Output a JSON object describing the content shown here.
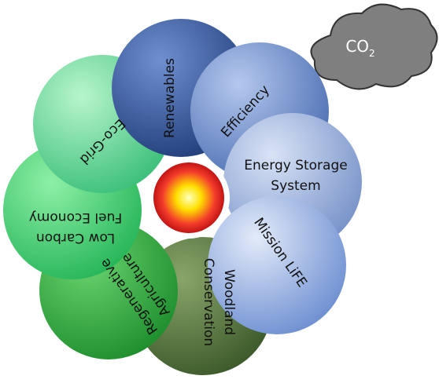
{
  "cloud": {
    "text": "CO",
    "subscript": "2"
  },
  "nodes": [
    {
      "lines": [
        "Renewables"
      ]
    },
    {
      "lines": [
        "Efficiency"
      ]
    },
    {
      "lines": [
        "Energy Storage",
        "System"
      ]
    },
    {
      "lines": [
        "Mission LiFE"
      ]
    },
    {
      "lines": [
        "Woodland",
        "Conservation"
      ]
    },
    {
      "lines": [
        "Regenerative",
        "Agriculture"
      ]
    },
    {
      "lines": [
        "Low Carbon",
        "Fuel Economy"
      ]
    },
    {
      "lines": [
        "Eco-Grid"
      ]
    }
  ]
}
